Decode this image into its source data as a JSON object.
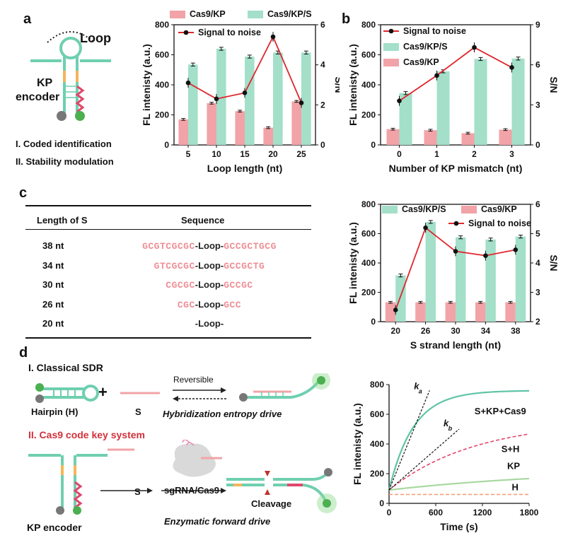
{
  "panels": {
    "a": {
      "letter": "a",
      "loop_label": "Loop",
      "encoder_label_line1": "KP",
      "encoder_label_line2": "encoder",
      "list": [
        "I. Coded identification",
        "II. Stability modulation"
      ]
    },
    "b": {
      "letter": "b"
    },
    "c": {
      "letter": "c",
      "table": {
        "headers": [
          "Length of S",
          "Sequence"
        ],
        "rows": [
          {
            "length": "38 nt",
            "left": "GCGTCGCGC",
            "mid": "-Loop-",
            "right": "GCCGCTGCG"
          },
          {
            "length": "34 nt",
            "left": "GTCGCGC",
            "mid": "-Loop-",
            "right": "GCCGCTG"
          },
          {
            "length": "30 nt",
            "left": "CGCGC",
            "mid": "-Loop-",
            "right": "GCCGC"
          },
          {
            "length": "26 nt",
            "left": "CGC",
            "mid": "-Loop-",
            "right": "GCC"
          },
          {
            "length": "20 nt",
            "left": "",
            "mid": "-Loop-",
            "right": ""
          }
        ]
      }
    },
    "d": {
      "letter": "d",
      "section1": "I. Classical SDR",
      "section2": "II. Cas9 code key system",
      "plus": "+",
      "hairpin_label": "Hairpin (H)",
      "s_label": "S",
      "reversible": "Reversible",
      "hyb_drive": "Hybridization entropy drive",
      "s_label2": "S",
      "sgrna": "sgRNA/Cas9",
      "cleavage": "Cleavage",
      "kp_encoder": "KP encoder",
      "enzymatic": "Enzymatic forward drive"
    }
  },
  "colors": {
    "teal": "#9fdcc4",
    "teal_line": "#5fc4a6",
    "pink": "#f2a3a7",
    "red": "#e0262c",
    "orange": "#f5b55a",
    "magenta": "#e0476b",
    "green_dot": "#4caf50",
    "grey_dot": "#777777"
  },
  "chart_data": [
    {
      "id": "a",
      "type": "bar",
      "xlabel": "Loop length (nt)",
      "ylabel": "FL intenisty (a.u.)",
      "y2label": "S/N",
      "categories": [
        "5",
        "10",
        "15",
        "20",
        "25"
      ],
      "ylim": [
        0,
        800
      ],
      "yticks": [
        "0",
        "200",
        "400",
        "600",
        "800"
      ],
      "y2lim": [
        0,
        6
      ],
      "y2ticks": [
        "0",
        "2",
        "4",
        "6"
      ],
      "series": [
        {
          "name": "Cas9/KP",
          "kind": "bar",
          "values": [
            170,
            278,
            225,
            115,
            290
          ]
        },
        {
          "name": "Cas9/KP/S",
          "kind": "bar",
          "values": [
            535,
            640,
            588,
            615,
            615
          ]
        },
        {
          "name": "Signal to noise",
          "kind": "line",
          "axis": "y2",
          "values": [
            3.1,
            2.3,
            2.6,
            5.4,
            2.1
          ]
        }
      ]
    },
    {
      "id": "b",
      "type": "bar",
      "xlabel": "Number of KP mismatch (nt)",
      "ylabel": "FL intenisty (a.u.)",
      "y2label": "S/N",
      "categories": [
        "0",
        "1",
        "2",
        "3"
      ],
      "ylim": [
        0,
        800
      ],
      "yticks": [
        "0",
        "200",
        "400",
        "600",
        "800"
      ],
      "y2lim": [
        0,
        9
      ],
      "y2ticks": [
        "0",
        "3",
        "6",
        "9"
      ],
      "series": [
        {
          "name": "Cas9/KP",
          "kind": "bar",
          "values": [
            105,
            98,
            78,
            102
          ]
        },
        {
          "name": "Cas9/KP/S",
          "kind": "bar",
          "values": [
            345,
            490,
            572,
            575
          ]
        },
        {
          "name": "Signal to noise",
          "kind": "line",
          "axis": "y2",
          "values": [
            3.3,
            5.2,
            7.3,
            5.8
          ]
        }
      ]
    },
    {
      "id": "c",
      "type": "bar",
      "xlabel": "S strand length (nt)",
      "ylabel": "FL intenisty (a.u.)",
      "y2label": "S/N",
      "categories": [
        "20",
        "26",
        "30",
        "34",
        "38"
      ],
      "ylim": [
        0,
        800
      ],
      "yticks": [
        "0",
        "200",
        "400",
        "600",
        "800"
      ],
      "y2lim": [
        2,
        6
      ],
      "y2ticks": [
        "2",
        "3",
        "4",
        "5",
        "6"
      ],
      "series": [
        {
          "name": "Cas9/KP",
          "kind": "bar",
          "values": [
            132,
            132,
            132,
            132,
            132
          ]
        },
        {
          "name": "Cas9/KP/S",
          "kind": "bar",
          "values": [
            315,
            680,
            575,
            560,
            580
          ]
        },
        {
          "name": "Signal to noise",
          "kind": "line",
          "axis": "y2",
          "values": [
            2.4,
            5.2,
            4.4,
            4.25,
            4.45
          ]
        }
      ]
    },
    {
      "id": "d",
      "type": "line",
      "xlabel": "Time (s)",
      "ylabel": "FL intenisty (a.u.)",
      "xlim": [
        0,
        1800
      ],
      "xticks": [
        "0",
        "600",
        "1200",
        "1800"
      ],
      "ylim": [
        0,
        800
      ],
      "yticks": [
        "0",
        "200",
        "400",
        "600",
        "800"
      ],
      "ka_label": "k",
      "ka_sub": "a",
      "kb_label": "k",
      "kb_sub": "b",
      "series": [
        {
          "name": "S+KP+Cas9",
          "style": "teal",
          "plateau": 760,
          "rate": 0.0032,
          "start": 90
        },
        {
          "name": "S+H",
          "style": "pink-dash",
          "plateau": 560,
          "rate": 0.0009,
          "start": 90
        },
        {
          "name": "KP",
          "style": "lightgreen",
          "plateau": 240,
          "rate": 0.0004,
          "start": 90
        },
        {
          "name": "H",
          "style": "orange-dash",
          "plateau": 72,
          "rate": 0.0,
          "start": 60
        }
      ]
    }
  ]
}
